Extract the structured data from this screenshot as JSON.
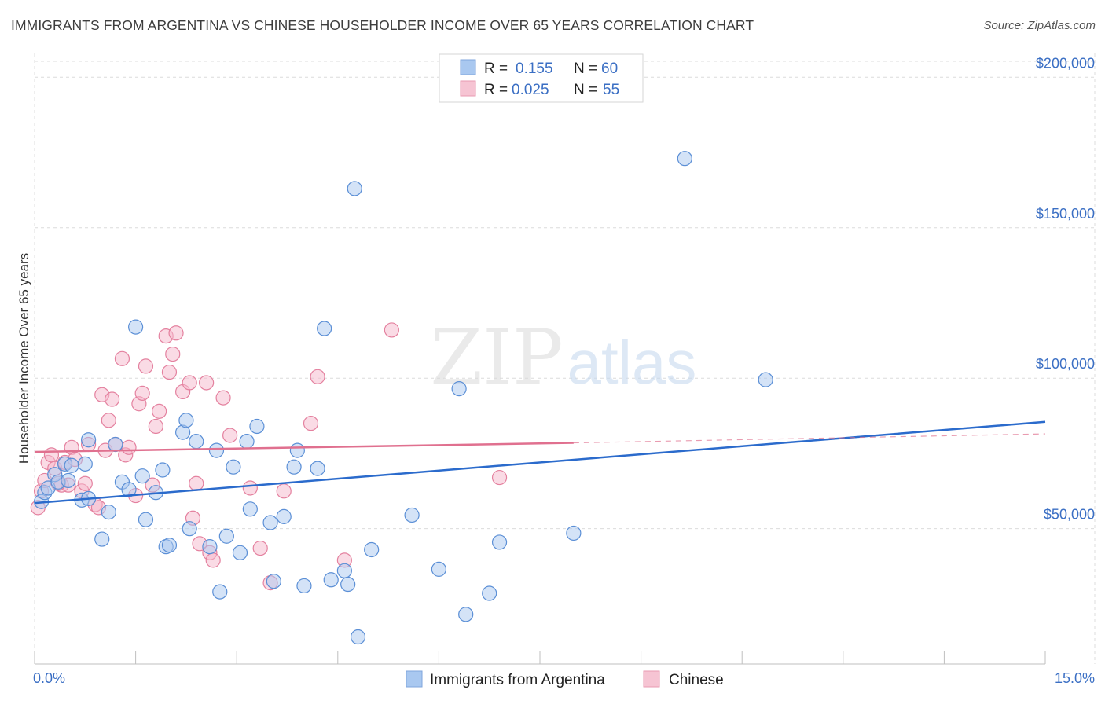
{
  "title": "IMMIGRANTS FROM ARGENTINA VS CHINESE HOUSEHOLDER INCOME OVER 65 YEARS CORRELATION CHART",
  "source": "Source: ZipAtlas.com",
  "watermark": {
    "zip": "ZIP",
    "atlas": "atlas"
  },
  "colors": {
    "blue_fill": "#a9c8f0",
    "blue_stroke": "#5b8fd6",
    "blue_line": "#2b6bcc",
    "pink_fill": "#f6b8cc",
    "pink_stroke": "#e4819f",
    "pink_line": "#e0708f",
    "grid": "#dcdcdc",
    "tick_text": "#3b6fc4"
  },
  "legend": {
    "items": [
      {
        "r_label": "R =",
        "r_value": "0.155",
        "n_label": "N =",
        "n_value": "60"
      },
      {
        "r_label": "R =",
        "r_value": "0.025",
        "n_label": "N =",
        "n_value": "55"
      }
    ]
  },
  "bottom_legend": [
    "Immigrants from Argentina",
    "Chinese"
  ],
  "chart_data": {
    "type": "scatter",
    "title": "IMMIGRANTS FROM ARGENTINA VS CHINESE HOUSEHOLDER INCOME OVER 65 YEARS CORRELATION CHART",
    "xlabel": "",
    "ylabel": "Householder Income Over 65 years",
    "xlim": [
      0,
      15
    ],
    "ylim": [
      5000,
      210000
    ],
    "x_tick_labels": [
      "0.0%",
      "15.0%"
    ],
    "y_ticks": [
      50000,
      100000,
      150000,
      200000
    ],
    "y_tick_labels": [
      "$50,000",
      "$100,000",
      "$150,000",
      "$200,000"
    ],
    "series": [
      {
        "name": "Immigrants from Argentina",
        "r": 0.155,
        "n": 60,
        "trend": {
          "x": [
            0,
            15
          ],
          "y": [
            58500,
            85500
          ],
          "dashed_from_x": null
        },
        "points": [
          [
            0.1,
            59000
          ],
          [
            0.15,
            62000
          ],
          [
            0.2,
            63500
          ],
          [
            0.3,
            68000
          ],
          [
            0.35,
            65500
          ],
          [
            0.45,
            71500
          ],
          [
            0.5,
            66000
          ],
          [
            0.55,
            71000
          ],
          [
            0.7,
            59500
          ],
          [
            0.75,
            71500
          ],
          [
            0.8,
            60000
          ],
          [
            0.8,
            79500
          ],
          [
            1.0,
            46500
          ],
          [
            1.1,
            55500
          ],
          [
            1.2,
            78000
          ],
          [
            1.3,
            65500
          ],
          [
            1.4,
            63000
          ],
          [
            1.5,
            117000
          ],
          [
            1.6,
            67500
          ],
          [
            1.65,
            53000
          ],
          [
            1.8,
            62000
          ],
          [
            1.9,
            69500
          ],
          [
            1.95,
            44000
          ],
          [
            2.0,
            44500
          ],
          [
            2.2,
            82000
          ],
          [
            2.25,
            86000
          ],
          [
            2.3,
            50000
          ],
          [
            2.4,
            79000
          ],
          [
            2.6,
            44000
          ],
          [
            2.7,
            76000
          ],
          [
            2.75,
            29000
          ],
          [
            2.85,
            47500
          ],
          [
            2.95,
            70500
          ],
          [
            3.05,
            42000
          ],
          [
            3.15,
            79000
          ],
          [
            3.2,
            56500
          ],
          [
            3.3,
            84000
          ],
          [
            3.5,
            52000
          ],
          [
            3.55,
            32500
          ],
          [
            3.7,
            54000
          ],
          [
            3.85,
            70500
          ],
          [
            3.9,
            76000
          ],
          [
            4.0,
            31000
          ],
          [
            4.2,
            70000
          ],
          [
            4.3,
            116500
          ],
          [
            4.4,
            33000
          ],
          [
            4.6,
            36000
          ],
          [
            4.65,
            31500
          ],
          [
            4.75,
            163000
          ],
          [
            4.8,
            14000
          ],
          [
            5.0,
            43000
          ],
          [
            5.6,
            54500
          ],
          [
            6.0,
            36500
          ],
          [
            6.3,
            96500
          ],
          [
            6.4,
            21500
          ],
          [
            6.75,
            28500
          ],
          [
            6.9,
            45500
          ],
          [
            8.0,
            48500
          ],
          [
            9.65,
            173000
          ],
          [
            10.85,
            99500
          ]
        ]
      },
      {
        "name": "Chinese",
        "r": 0.025,
        "n": 55,
        "trend": {
          "x": [
            0,
            8.0
          ],
          "y": [
            75500,
            78500
          ],
          "dashed_to_x": 15,
          "dashed_to_y": 81500
        },
        "points": [
          [
            0.05,
            57000
          ],
          [
            0.1,
            62500
          ],
          [
            0.15,
            66000
          ],
          [
            0.2,
            72000
          ],
          [
            0.25,
            74500
          ],
          [
            0.3,
            70000
          ],
          [
            0.4,
            64500
          ],
          [
            0.45,
            72000
          ],
          [
            0.5,
            64500
          ],
          [
            0.55,
            77000
          ],
          [
            0.6,
            73000
          ],
          [
            0.7,
            62500
          ],
          [
            0.75,
            65000
          ],
          [
            0.8,
            78000
          ],
          [
            0.9,
            58000
          ],
          [
            0.95,
            57000
          ],
          [
            1.0,
            94500
          ],
          [
            1.05,
            76000
          ],
          [
            1.1,
            86000
          ],
          [
            1.15,
            93000
          ],
          [
            1.2,
            78000
          ],
          [
            1.3,
            106500
          ],
          [
            1.35,
            74500
          ],
          [
            1.4,
            77000
          ],
          [
            1.5,
            61000
          ],
          [
            1.55,
            91500
          ],
          [
            1.6,
            95000
          ],
          [
            1.65,
            104000
          ],
          [
            1.75,
            64500
          ],
          [
            1.8,
            84000
          ],
          [
            1.85,
            89000
          ],
          [
            1.95,
            114000
          ],
          [
            2.0,
            102000
          ],
          [
            2.05,
            108000
          ],
          [
            2.1,
            115000
          ],
          [
            2.2,
            95500
          ],
          [
            2.3,
            98500
          ],
          [
            2.35,
            53500
          ],
          [
            2.4,
            65000
          ],
          [
            2.45,
            45000
          ],
          [
            2.55,
            98500
          ],
          [
            2.6,
            42000
          ],
          [
            2.65,
            39500
          ],
          [
            2.8,
            93500
          ],
          [
            2.9,
            81000
          ],
          [
            3.2,
            63500
          ],
          [
            3.35,
            43500
          ],
          [
            3.5,
            32000
          ],
          [
            3.7,
            62500
          ],
          [
            4.1,
            85000
          ],
          [
            4.2,
            100500
          ],
          [
            4.6,
            39500
          ],
          [
            5.3,
            116000
          ],
          [
            6.9,
            67000
          ],
          [
            0.35,
            65000
          ]
        ]
      }
    ]
  }
}
